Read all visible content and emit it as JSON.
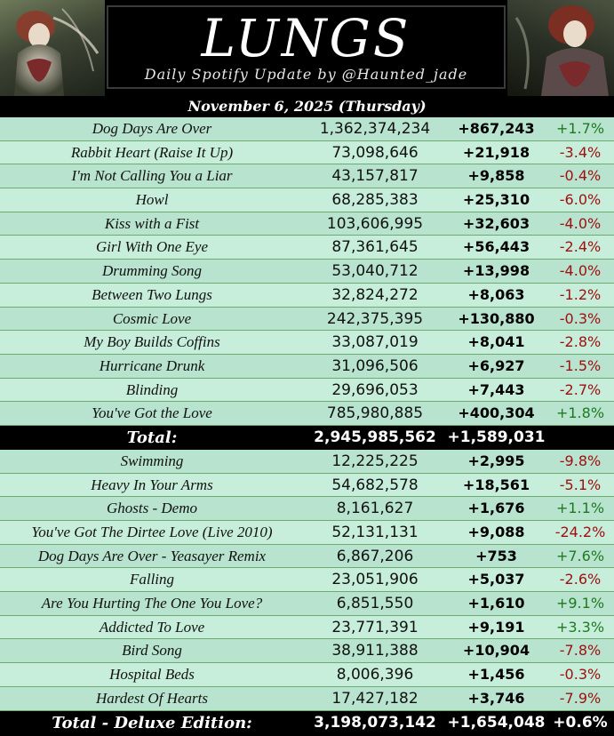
{
  "header": {
    "title": "LUNGS",
    "subtitle": "Daily Spotify Update by @Haunted_jade"
  },
  "date": "November 6, 2025 (Thursday)",
  "standard_tracks": [
    {
      "name": "Dog Days Are Over",
      "streams": "1,362,374,234",
      "daily": "+867,243",
      "change": "+1.7%"
    },
    {
      "name": "Rabbit Heart (Raise It Up)",
      "streams": "73,098,646",
      "daily": "+21,918",
      "change": "-3.4%"
    },
    {
      "name": "I'm Not Calling You a Liar",
      "streams": "43,157,817",
      "daily": "+9,858",
      "change": "-0.4%"
    },
    {
      "name": "Howl",
      "streams": "68,285,383",
      "daily": "+25,310",
      "change": "-6.0%"
    },
    {
      "name": "Kiss with a Fist",
      "streams": "103,606,995",
      "daily": "+32,603",
      "change": "-4.0%"
    },
    {
      "name": "Girl With One Eye",
      "streams": "87,361,645",
      "daily": "+56,443",
      "change": "-2.4%"
    },
    {
      "name": "Drumming Song",
      "streams": "53,040,712",
      "daily": "+13,998",
      "change": "-4.0%"
    },
    {
      "name": "Between Two Lungs",
      "streams": "32,824,272",
      "daily": "+8,063",
      "change": "-1.2%"
    },
    {
      "name": "Cosmic Love",
      "streams": "242,375,395",
      "daily": "+130,880",
      "change": "-0.3%"
    },
    {
      "name": "My Boy Builds Coffins",
      "streams": "33,087,019",
      "daily": "+8,041",
      "change": "-2.8%"
    },
    {
      "name": "Hurricane Drunk",
      "streams": "31,096,506",
      "daily": "+6,927",
      "change": "-1.5%"
    },
    {
      "name": "Blinding",
      "streams": "29,696,053",
      "daily": "+7,443",
      "change": "-2.7%"
    },
    {
      "name": "You've Got the Love",
      "streams": "785,980,885",
      "daily": "+400,304",
      "change": "+1.8%"
    }
  ],
  "total": {
    "label": "Total:",
    "streams": "2,945,985,562",
    "daily": "+1,589,031",
    "change": ""
  },
  "deluxe_tracks": [
    {
      "name": "Swimming",
      "streams": "12,225,225",
      "daily": "+2,995",
      "change": "-9.8%"
    },
    {
      "name": "Heavy In Your Arms",
      "streams": "54,682,578",
      "daily": "+18,561",
      "change": "-5.1%"
    },
    {
      "name": "Ghosts - Demo",
      "streams": "8,161,627",
      "daily": "+1,676",
      "change": "+1.1%"
    },
    {
      "name": "You've Got The Dirtee Love (Live 2010)",
      "streams": "52,131,131",
      "daily": "+9,088",
      "change": "-24.2%"
    },
    {
      "name": "Dog Days Are Over - Yeasayer Remix",
      "streams": "6,867,206",
      "daily": "+753",
      "change": "+7.6%"
    },
    {
      "name": "Falling",
      "streams": "23,051,906",
      "daily": "+5,037",
      "change": "-2.6%"
    },
    {
      "name": "Are You Hurting The One You Love?",
      "streams": "6,851,550",
      "daily": "+1,610",
      "change": "+9.1%"
    },
    {
      "name": "Addicted To Love",
      "streams": "23,771,391",
      "daily": "+9,191",
      "change": "+3.3%"
    },
    {
      "name": "Bird Song",
      "streams": "38,911,388",
      "daily": "+10,904",
      "change": "-7.8%"
    },
    {
      "name": "Hospital Beds",
      "streams": "8,006,396",
      "daily": "+1,456",
      "change": "-0.3%"
    },
    {
      "name": "Hardest Of Hearts",
      "streams": "17,427,182",
      "daily": "+3,746",
      "change": "-7.9%"
    }
  ],
  "deluxe_total": {
    "label": "Total - Deluxe Edition:",
    "streams": "3,198,073,142",
    "daily": "+1,654,048",
    "change": "+0.6%"
  },
  "colors": {
    "positive": "#1f7a1f",
    "negative": "#a01010",
    "row_light": "#c6eedb",
    "row_dark": "#b7e3cf"
  }
}
